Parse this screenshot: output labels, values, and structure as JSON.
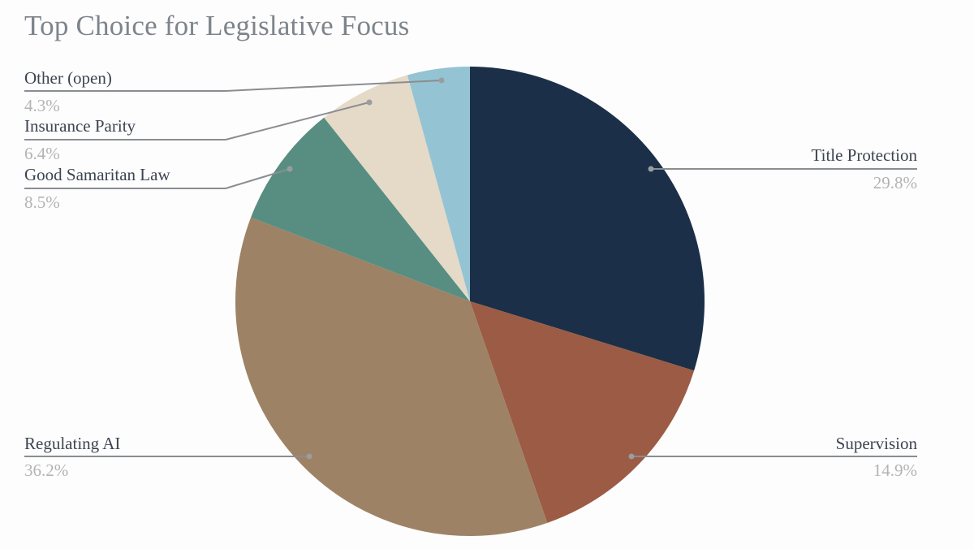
{
  "chart_data": {
    "type": "pie",
    "title": "Top Choice for Legislative Focus",
    "categories": [
      "Title Protection",
      "Supervision",
      "Regulating AI",
      "Good Samaritan Law",
      "Insurance Parity",
      "Other (open)"
    ],
    "values": [
      29.8,
      14.9,
      36.2,
      8.5,
      6.4,
      4.3
    ],
    "value_labels": [
      "29.8%",
      "14.9%",
      "36.2%",
      "8.5%",
      "6.4%",
      "4.3%"
    ],
    "colors": [
      "#1b2f48",
      "#9c5b44",
      "#9e8265",
      "#578e81",
      "#e5d9c8",
      "#94c4d3"
    ],
    "start_angle_deg": 0,
    "direction": "clockwise",
    "legend": "callout labels"
  },
  "labels": [
    {
      "name": "Title Protection",
      "pct": "29.8%"
    },
    {
      "name": "Supervision",
      "pct": "14.9%"
    },
    {
      "name": "Regulating AI",
      "pct": "36.2%"
    },
    {
      "name": "Good Samaritan Law",
      "pct": "8.5%"
    },
    {
      "name": "Insurance Parity",
      "pct": "6.4%"
    },
    {
      "name": "Other (open)",
      "pct": "4.3%"
    }
  ]
}
